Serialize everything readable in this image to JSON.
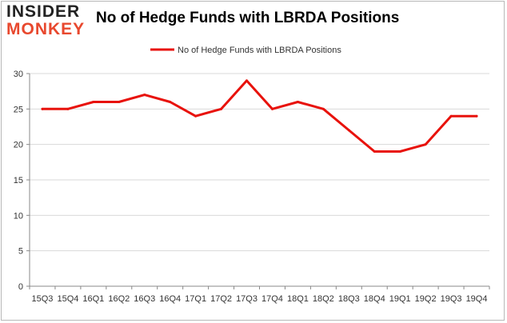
{
  "logo": {
    "line1": "INSIDER",
    "line2": "MONKEY"
  },
  "chart_data": {
    "type": "line",
    "title": "No of Hedge Funds with LBRDA Positions",
    "xlabel": "",
    "ylabel": "",
    "categories": [
      "15Q3",
      "15Q4",
      "16Q1",
      "16Q2",
      "16Q3",
      "16Q4",
      "17Q1",
      "17Q2",
      "17Q3",
      "17Q4",
      "18Q1",
      "18Q2",
      "18Q3",
      "18Q4",
      "19Q1",
      "19Q2",
      "19Q3",
      "19Q4"
    ],
    "series": [
      {
        "name": "No of Hedge Funds with LBRDA Positions",
        "values": [
          25,
          25,
          26,
          26,
          27,
          26,
          24,
          25,
          29,
          25,
          26,
          25,
          22,
          19,
          19,
          20,
          24,
          24
        ],
        "color": "#e8120c"
      }
    ],
    "ylim": [
      0,
      30
    ],
    "yticks": [
      0,
      5,
      10,
      15,
      20,
      25,
      30
    ],
    "grid": "horizontal",
    "legend": "top-center"
  }
}
